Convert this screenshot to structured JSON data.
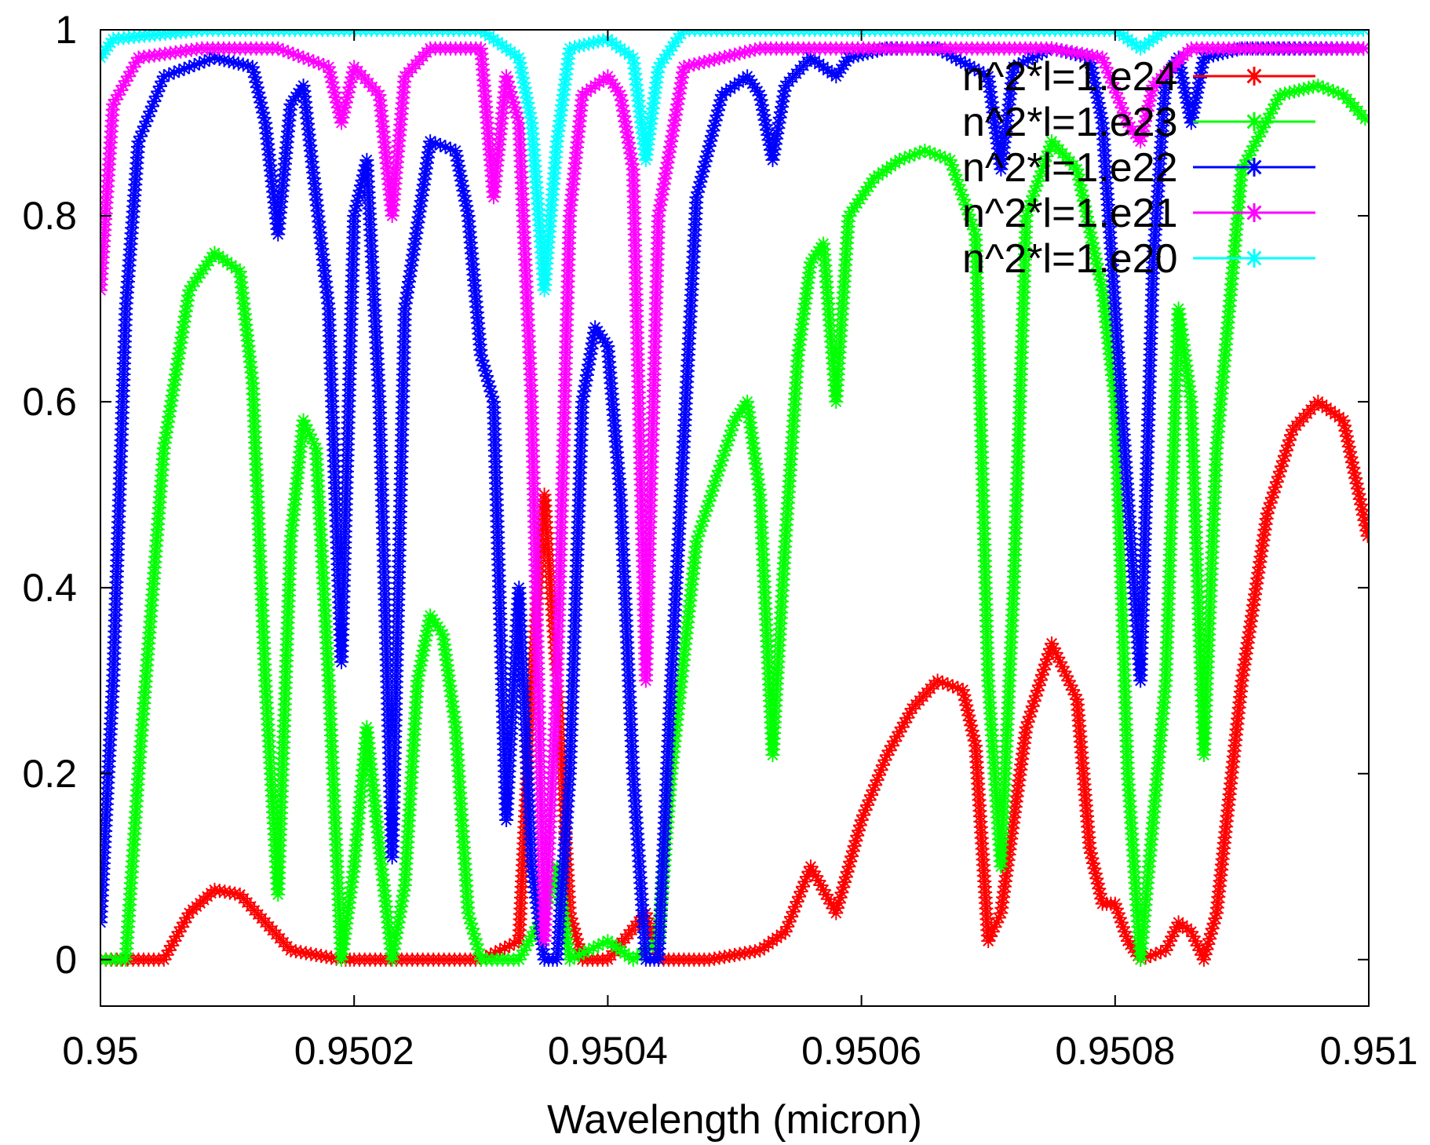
{
  "chart_data": {
    "type": "scatter",
    "title": "",
    "xlabel": "Wavelength (micron)",
    "ylabel": "",
    "xlim": [
      0.95,
      0.951
    ],
    "ylim": [
      -0.05,
      1.0
    ],
    "x_ticks": [
      "0.95",
      "0.9502",
      "0.9504",
      "0.9506",
      "0.9508",
      "0.951"
    ],
    "y_ticks": [
      "0",
      "0.2",
      "0.4",
      "0.6",
      "0.8",
      "1"
    ],
    "grid": false,
    "legend_position": "top-right",
    "series": [
      {
        "name": "n^2*l=1.e24",
        "color": "#ff0000",
        "marker": "*",
        "points": [
          [
            0.95,
            0.0
          ],
          [
            0.95003,
            0.0
          ],
          [
            0.95005,
            0.0
          ],
          [
            0.95007,
            0.05
          ],
          [
            0.95009,
            0.075
          ],
          [
            0.95011,
            0.07
          ],
          [
            0.95013,
            0.04
          ],
          [
            0.95015,
            0.01
          ],
          [
            0.95017,
            0.005
          ],
          [
            0.95019,
            0.0
          ],
          [
            0.9502,
            0.0
          ],
          [
            0.95025,
            0.0
          ],
          [
            0.9503,
            0.0
          ],
          [
            0.95033,
            0.02
          ],
          [
            0.95034,
            0.3
          ],
          [
            0.95035,
            0.5
          ],
          [
            0.95036,
            0.3
          ],
          [
            0.95037,
            0.05
          ],
          [
            0.95038,
            0.0
          ],
          [
            0.9504,
            0.0
          ],
          [
            0.95043,
            0.05
          ],
          [
            0.95044,
            0.0
          ],
          [
            0.95046,
            0.0
          ],
          [
            0.95048,
            0.0
          ],
          [
            0.9505,
            0.005
          ],
          [
            0.95052,
            0.01
          ],
          [
            0.95054,
            0.03
          ],
          [
            0.95056,
            0.1
          ],
          [
            0.95058,
            0.05
          ],
          [
            0.9506,
            0.15
          ],
          [
            0.95062,
            0.22
          ],
          [
            0.95064,
            0.27
          ],
          [
            0.95066,
            0.3
          ],
          [
            0.95068,
            0.29
          ],
          [
            0.95069,
            0.23
          ],
          [
            0.9507,
            0.02
          ],
          [
            0.95071,
            0.05
          ],
          [
            0.95073,
            0.25
          ],
          [
            0.95075,
            0.34
          ],
          [
            0.95077,
            0.28
          ],
          [
            0.95078,
            0.12
          ],
          [
            0.95079,
            0.06
          ],
          [
            0.9508,
            0.06
          ],
          [
            0.95081,
            0.02
          ],
          [
            0.95082,
            0.0
          ],
          [
            0.95084,
            0.01
          ],
          [
            0.95085,
            0.04
          ],
          [
            0.95086,
            0.03
          ],
          [
            0.95087,
            0.0
          ],
          [
            0.95088,
            0.05
          ],
          [
            0.9509,
            0.3
          ],
          [
            0.95092,
            0.48
          ],
          [
            0.95094,
            0.57
          ],
          [
            0.95096,
            0.6
          ],
          [
            0.95098,
            0.58
          ],
          [
            0.951,
            0.45
          ]
        ]
      },
      {
        "name": "n^2*l=1.e23",
        "color": "#00ff00",
        "marker": "*",
        "points": [
          [
            0.95,
            0.0
          ],
          [
            0.95002,
            0.0
          ],
          [
            0.95003,
            0.2
          ],
          [
            0.95005,
            0.55
          ],
          [
            0.95007,
            0.72
          ],
          [
            0.95009,
            0.76
          ],
          [
            0.95011,
            0.74
          ],
          [
            0.95012,
            0.62
          ],
          [
            0.95013,
            0.3
          ],
          [
            0.95014,
            0.07
          ],
          [
            0.95015,
            0.45
          ],
          [
            0.95016,
            0.58
          ],
          [
            0.95017,
            0.55
          ],
          [
            0.95018,
            0.3
          ],
          [
            0.95019,
            0.0
          ],
          [
            0.9502,
            0.1
          ],
          [
            0.95021,
            0.25
          ],
          [
            0.95022,
            0.12
          ],
          [
            0.95023,
            0.0
          ],
          [
            0.95024,
            0.08
          ],
          [
            0.95025,
            0.3
          ],
          [
            0.95026,
            0.37
          ],
          [
            0.95027,
            0.35
          ],
          [
            0.95028,
            0.25
          ],
          [
            0.95029,
            0.05
          ],
          [
            0.9503,
            0.0
          ],
          [
            0.95033,
            0.0
          ],
          [
            0.95035,
            0.05
          ],
          [
            0.95036,
            0.1
          ],
          [
            0.95037,
            0.0
          ],
          [
            0.9504,
            0.02
          ],
          [
            0.95041,
            0.01
          ],
          [
            0.95042,
            0.0
          ],
          [
            0.95044,
            0.02
          ],
          [
            0.95045,
            0.2
          ],
          [
            0.95047,
            0.45
          ],
          [
            0.9505,
            0.58
          ],
          [
            0.95051,
            0.6
          ],
          [
            0.95052,
            0.5
          ],
          [
            0.95053,
            0.22
          ],
          [
            0.95054,
            0.45
          ],
          [
            0.95055,
            0.65
          ],
          [
            0.95056,
            0.75
          ],
          [
            0.95057,
            0.77
          ],
          [
            0.95058,
            0.6
          ],
          [
            0.95059,
            0.8
          ],
          [
            0.95061,
            0.84
          ],
          [
            0.95063,
            0.86
          ],
          [
            0.95065,
            0.87
          ],
          [
            0.95067,
            0.86
          ],
          [
            0.95069,
            0.78
          ],
          [
            0.9507,
            0.3
          ],
          [
            0.95071,
            0.1
          ],
          [
            0.95072,
            0.4
          ],
          [
            0.95073,
            0.8
          ],
          [
            0.95075,
            0.88
          ],
          [
            0.95077,
            0.85
          ],
          [
            0.95079,
            0.72
          ],
          [
            0.9508,
            0.6
          ],
          [
            0.95081,
            0.2
          ],
          [
            0.95082,
            0.0
          ],
          [
            0.95084,
            0.3
          ],
          [
            0.95085,
            0.7
          ],
          [
            0.95086,
            0.6
          ],
          [
            0.95087,
            0.22
          ],
          [
            0.95088,
            0.55
          ],
          [
            0.9509,
            0.85
          ],
          [
            0.95093,
            0.93
          ],
          [
            0.95096,
            0.94
          ],
          [
            0.95098,
            0.93
          ],
          [
            0.951,
            0.9
          ]
        ]
      },
      {
        "name": "n^2*l=1.e22",
        "color": "#0000ff",
        "marker": "*",
        "points": [
          [
            0.95,
            0.04
          ],
          [
            0.95001,
            0.3
          ],
          [
            0.95002,
            0.7
          ],
          [
            0.95003,
            0.88
          ],
          [
            0.95005,
            0.95
          ],
          [
            0.95009,
            0.97
          ],
          [
            0.95012,
            0.96
          ],
          [
            0.95013,
            0.9
          ],
          [
            0.95014,
            0.78
          ],
          [
            0.95015,
            0.92
          ],
          [
            0.95016,
            0.94
          ],
          [
            0.95018,
            0.7
          ],
          [
            0.95019,
            0.32
          ],
          [
            0.9502,
            0.8
          ],
          [
            0.95021,
            0.86
          ],
          [
            0.95022,
            0.6
          ],
          [
            0.95023,
            0.11
          ],
          [
            0.95024,
            0.7
          ],
          [
            0.95026,
            0.88
          ],
          [
            0.95028,
            0.87
          ],
          [
            0.95029,
            0.8
          ],
          [
            0.9503,
            0.65
          ],
          [
            0.95031,
            0.6
          ],
          [
            0.95032,
            0.15
          ],
          [
            0.95033,
            0.4
          ],
          [
            0.95034,
            0.1
          ],
          [
            0.95035,
            0.0
          ],
          [
            0.95036,
            0.0
          ],
          [
            0.95037,
            0.2
          ],
          [
            0.95038,
            0.6
          ],
          [
            0.95039,
            0.68
          ],
          [
            0.9504,
            0.66
          ],
          [
            0.95041,
            0.5
          ],
          [
            0.95042,
            0.2
          ],
          [
            0.95043,
            0.0
          ],
          [
            0.95044,
            0.0
          ],
          [
            0.95045,
            0.3
          ],
          [
            0.95047,
            0.82
          ],
          [
            0.95049,
            0.93
          ],
          [
            0.95051,
            0.95
          ],
          [
            0.95052,
            0.93
          ],
          [
            0.95053,
            0.86
          ],
          [
            0.95054,
            0.94
          ],
          [
            0.95056,
            0.97
          ],
          [
            0.95058,
            0.95
          ],
          [
            0.95059,
            0.97
          ],
          [
            0.95062,
            0.98
          ],
          [
            0.95066,
            0.98
          ],
          [
            0.9507,
            0.95
          ],
          [
            0.95071,
            0.85
          ],
          [
            0.95072,
            0.96
          ],
          [
            0.95075,
            0.98
          ],
          [
            0.95078,
            0.97
          ],
          [
            0.95079,
            0.9
          ],
          [
            0.9508,
            0.7
          ],
          [
            0.95081,
            0.5
          ],
          [
            0.95082,
            0.3
          ],
          [
            0.95083,
            0.75
          ],
          [
            0.95084,
            0.95
          ],
          [
            0.95085,
            0.97
          ],
          [
            0.95086,
            0.9
          ],
          [
            0.95087,
            0.97
          ],
          [
            0.9509,
            0.98
          ],
          [
            0.951,
            0.98
          ]
        ]
      },
      {
        "name": "n^2*l=1.e21",
        "color": "#ff00ff",
        "marker": "*",
        "points": [
          [
            0.95,
            0.72
          ],
          [
            0.95001,
            0.92
          ],
          [
            0.95003,
            0.97
          ],
          [
            0.95008,
            0.98
          ],
          [
            0.95014,
            0.98
          ],
          [
            0.95018,
            0.96
          ],
          [
            0.95019,
            0.9
          ],
          [
            0.9502,
            0.96
          ],
          [
            0.95022,
            0.93
          ],
          [
            0.95023,
            0.8
          ],
          [
            0.95024,
            0.95
          ],
          [
            0.95026,
            0.98
          ],
          [
            0.9503,
            0.98
          ],
          [
            0.95031,
            0.82
          ],
          [
            0.95032,
            0.95
          ],
          [
            0.95033,
            0.9
          ],
          [
            0.95034,
            0.6
          ],
          [
            0.95035,
            0.02
          ],
          [
            0.95036,
            0.3
          ],
          [
            0.95037,
            0.8
          ],
          [
            0.95038,
            0.93
          ],
          [
            0.9504,
            0.95
          ],
          [
            0.95041,
            0.93
          ],
          [
            0.95042,
            0.85
          ],
          [
            0.95043,
            0.3
          ],
          [
            0.95044,
            0.8
          ],
          [
            0.95046,
            0.96
          ],
          [
            0.95052,
            0.98
          ],
          [
            0.9507,
            0.98
          ],
          [
            0.95075,
            0.98
          ],
          [
            0.95079,
            0.97
          ],
          [
            0.95081,
            0.9
          ],
          [
            0.95082,
            0.88
          ],
          [
            0.95083,
            0.94
          ],
          [
            0.95086,
            0.98
          ],
          [
            0.951,
            0.98
          ]
        ]
      },
      {
        "name": "n^2*l=1.e20",
        "color": "#00ffff",
        "marker": "*",
        "points": [
          [
            0.95,
            0.97
          ],
          [
            0.95001,
            0.99
          ],
          [
            0.95008,
            1.0
          ],
          [
            0.9503,
            1.0
          ],
          [
            0.95033,
            0.97
          ],
          [
            0.95034,
            0.9
          ],
          [
            0.95035,
            0.72
          ],
          [
            0.95036,
            0.88
          ],
          [
            0.95037,
            0.98
          ],
          [
            0.9504,
            0.99
          ],
          [
            0.95042,
            0.97
          ],
          [
            0.95043,
            0.86
          ],
          [
            0.95044,
            0.96
          ],
          [
            0.95046,
            1.0
          ],
          [
            0.9508,
            1.0
          ],
          [
            0.95082,
            0.98
          ],
          [
            0.95084,
            1.0
          ],
          [
            0.951,
            1.0
          ]
        ]
      }
    ]
  }
}
